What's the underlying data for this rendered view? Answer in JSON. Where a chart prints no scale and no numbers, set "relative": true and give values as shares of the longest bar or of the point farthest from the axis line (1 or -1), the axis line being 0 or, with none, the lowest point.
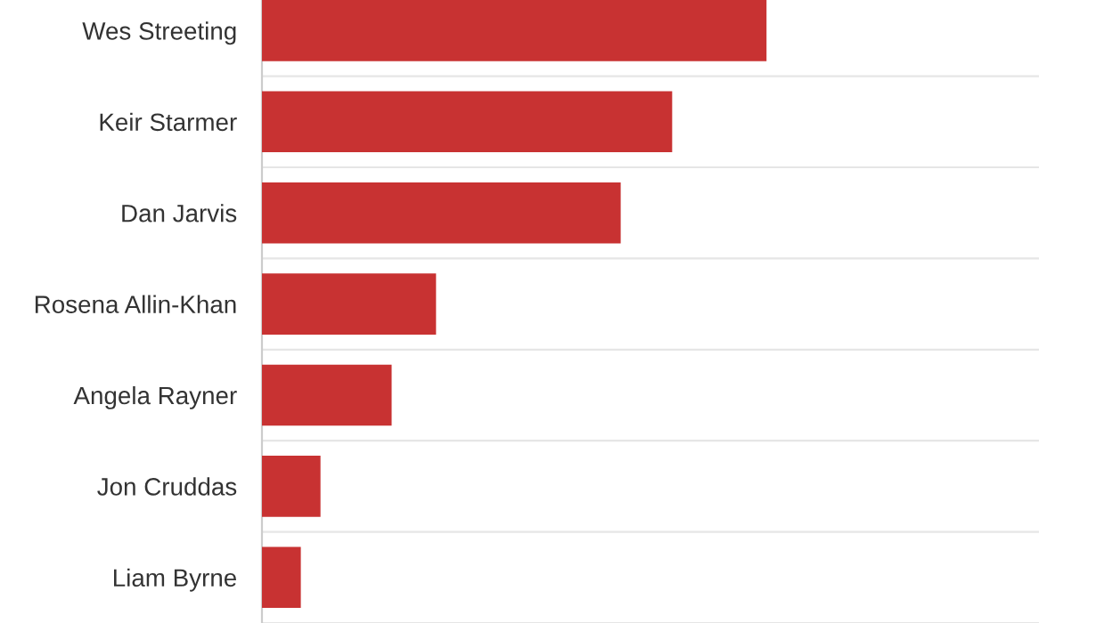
{
  "chart_data": {
    "type": "bar",
    "orientation": "horizontal",
    "relative": true,
    "categories": [
      "Wes Streeting",
      "Keir Starmer",
      "Dan Jarvis",
      "Rosena Allin-Khan",
      "Angela Rayner",
      "Jon Cruddas",
      "Liam Byrne"
    ],
    "values": [
      1,
      0.813,
      0.711,
      0.345,
      0.257,
      0.116,
      0.077
    ],
    "color": "#c83232",
    "grid": "y"
  }
}
